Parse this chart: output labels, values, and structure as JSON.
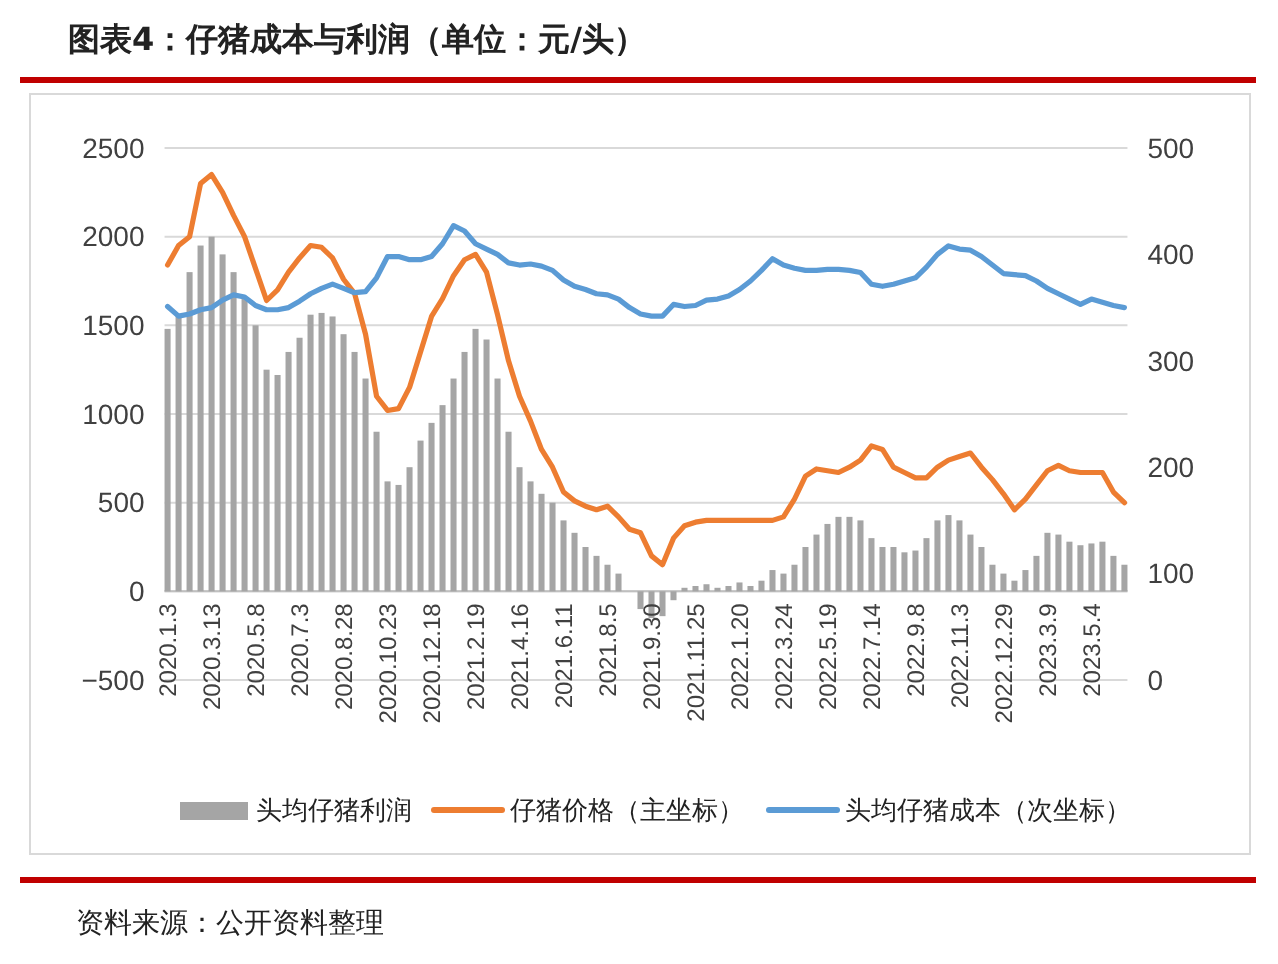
{
  "chart_data": {
    "type": "bar",
    "title": "图表4：仔猪成本与利润（单位：元/头）",
    "categories": [
      "2020.1.3",
      null,
      null,
      null,
      "2020.3.13",
      null,
      null,
      null,
      "2020.5.8",
      null,
      null,
      null,
      "2020.7.3",
      null,
      null,
      null,
      "2020.8.28",
      null,
      null,
      null,
      "2020.10.23",
      null,
      null,
      null,
      "2020.12.18",
      null,
      null,
      null,
      "2021.2.19",
      null,
      null,
      null,
      "2021.4.16",
      null,
      null,
      null,
      "2021.6.11",
      null,
      null,
      null,
      "2021.8.5",
      null,
      null,
      null,
      "2021.9.30",
      null,
      null,
      null,
      "2021.11.25",
      null,
      null,
      null,
      "2022.1.20",
      null,
      null,
      null,
      "2022.3.24",
      null,
      null,
      null,
      "2022.5.19",
      null,
      null,
      null,
      "2022.7.14",
      null,
      null,
      null,
      "2022.9.8",
      null,
      null,
      null,
      "2022.11.3",
      null,
      null,
      null,
      "2022.12.29",
      null,
      null,
      null,
      "2023.3.9",
      null,
      null,
      null,
      "2023.5.4",
      null,
      null,
      null
    ],
    "series": [
      {
        "name": "头均仔猪利润",
        "color": "#a5a5a5",
        "values": [
          1480,
          1560,
          1800,
          1950,
          2000,
          1900,
          1800,
          1650,
          1500,
          1250,
          1220,
          1350,
          1430,
          1560,
          1570,
          1550,
          1450,
          1350,
          1200,
          900,
          620,
          600,
          700,
          850,
          950,
          1050,
          1200,
          1350,
          1480,
          1420,
          1200,
          900,
          700,
          620,
          550,
          500,
          400,
          330,
          250,
          200,
          150,
          100,
          0,
          -100,
          -150,
          -140,
          -50,
          20,
          30,
          40,
          20,
          30,
          50,
          30,
          60,
          120,
          100,
          150,
          250,
          320,
          380,
          420,
          420,
          400,
          300,
          250,
          250,
          220,
          230,
          300,
          400,
          430,
          400,
          320,
          250,
          150,
          100,
          60,
          120,
          200,
          330,
          320,
          280,
          260,
          270,
          280,
          200,
          150
        ]
      },
      {
        "name": "仔猪价格（主坐标）",
        "type": "line",
        "color": "#ed7d31",
        "values": [
          1840,
          1950,
          2000,
          2300,
          2350,
          2250,
          2120,
          2000,
          1820,
          1640,
          1700,
          1800,
          1880,
          1950,
          1940,
          1880,
          1760,
          1680,
          1450,
          1100,
          1020,
          1030,
          1150,
          1350,
          1550,
          1650,
          1780,
          1870,
          1900,
          1800,
          1560,
          1300,
          1100,
          960,
          800,
          700,
          560,
          510,
          480,
          460,
          480,
          420,
          350,
          330,
          200,
          150,
          300,
          370,
          390,
          400,
          400,
          400,
          400,
          400,
          400,
          400,
          420,
          520,
          650,
          690,
          680,
          670,
          700,
          740,
          820,
          800,
          700,
          670,
          640,
          640,
          700,
          740,
          760,
          780,
          700,
          630,
          550,
          460,
          520,
          600,
          680,
          710,
          680,
          670,
          670,
          670,
          560,
          500
        ]
      },
      {
        "name": "头均仔猪成本（次坐标）",
        "type": "line",
        "axis": "y2",
        "color": "#5b9bd5",
        "values": [
          351,
          342,
          344,
          348,
          350,
          357,
          362,
          360,
          352,
          348,
          348,
          350,
          356,
          363,
          368,
          372,
          368,
          364,
          365,
          378,
          398,
          398,
          395,
          395,
          398,
          410,
          427,
          422,
          410,
          405,
          400,
          392,
          390,
          391,
          389,
          385,
          376,
          370,
          367,
          363,
          362,
          358,
          350,
          344,
          342,
          342,
          353,
          351,
          352,
          357,
          358,
          361,
          367,
          375,
          385,
          396,
          390,
          387,
          385,
          385,
          386,
          386,
          385,
          383,
          372,
          370,
          372,
          375,
          378,
          388,
          400,
          408,
          405,
          404,
          398,
          390,
          382,
          381,
          380,
          375,
          368,
          363,
          358,
          353,
          358,
          355,
          352,
          350
        ]
      }
    ],
    "ylim": [
      -500,
      2500
    ],
    "yticks": [
      -500,
      0,
      500,
      1000,
      1500,
      2000,
      2500
    ],
    "y2lim": [
      0,
      500
    ],
    "y2ticks": [
      0,
      100,
      200,
      300,
      400,
      500
    ],
    "grid": "y",
    "legend": "bottom",
    "annotations": [
      "资料来源：公开资料整理"
    ]
  }
}
